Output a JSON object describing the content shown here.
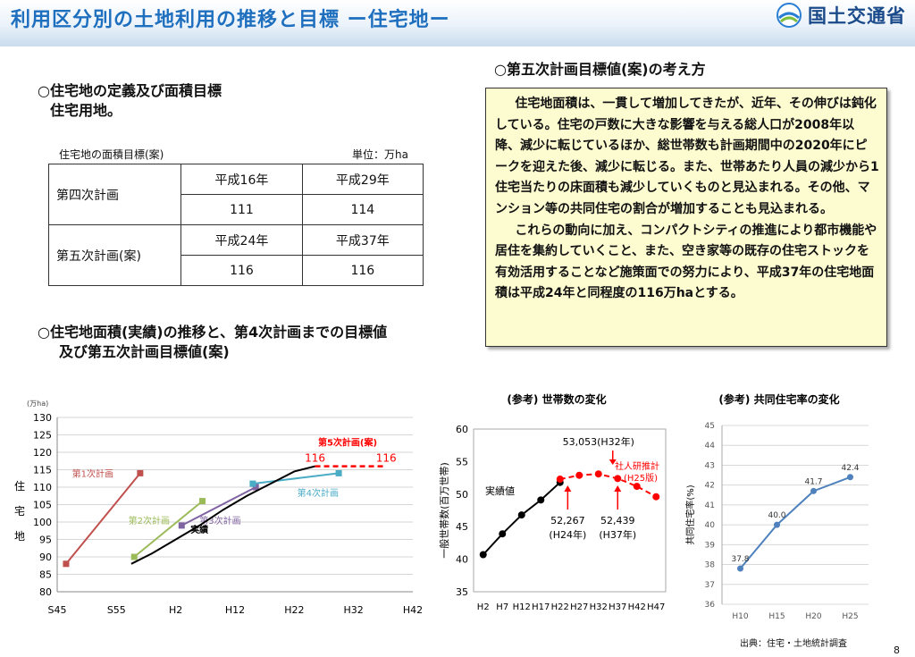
{
  "header": {
    "title": "利用区分別の土地利用の推移と目標 ー住宅地ー",
    "logo_text": "国土交通省"
  },
  "definition": {
    "heading": "○住宅地の定義及び面積目標",
    "text": "住宅用地。"
  },
  "table": {
    "caption": "住宅地の面積目標(案)",
    "unit": "単位：万ha",
    "rows": [
      {
        "plan": "第四次計画",
        "years": [
          "平成16年",
          "平成29年"
        ],
        "values": [
          "111",
          "114"
        ]
      },
      {
        "plan": "第五次計画(案)",
        "years": [
          "平成24年",
          "平成37年"
        ],
        "values": [
          "116",
          "116"
        ]
      }
    ]
  },
  "trend": {
    "heading_line1": "○住宅地面積(実績)の推移と、第4次計画までの目標値",
    "heading_line2": "及び第五次計画目標値(案)"
  },
  "concept": {
    "heading": "○第五次計画目標値(案)の考え方",
    "paragraph1": "住宅地面積は、一貫して増加してきたが、近年、その伸びは鈍化している。住宅の戸数に大きな影響を与える総人口が2008年以降、減少に転じているほか、総世帯数も計画期間中の2020年にピークを迎えた後、減少に転じる。また、世帯あたり人員の減少から1住宅当たりの床面積も減少していくものと見込まれる。その他、マンション等の共同住宅の割合が増加することも見込まれる。",
    "paragraph2": "これらの動向に加え、コンパクトシティの推進により都市機能や居住を集約していくこと、また、空き家等の既存の住宅ストックを有効活用することなど施策面での努力により、平成37年の住宅地面積は平成24年と同程度の116万haとする。"
  },
  "source": "出典：住宅・土地統計調査",
  "page_number": "8",
  "colors": {
    "title": "#1f6fbf",
    "plan1": "#c0504d",
    "plan2": "#9bbb59",
    "plan3": "#8064a2",
    "plan4": "#4bacc6",
    "plan5": "#ff0000",
    "actual": "#000000",
    "rate": "#4f81bd",
    "note_bg": "#fdfbd0"
  },
  "chart_data": [
    {
      "type": "line",
      "unit_label": "(万ha)",
      "ylabel": "住宅地",
      "ylim": [
        80,
        130
      ],
      "yticks": [
        80,
        85,
        90,
        95,
        100,
        105,
        110,
        115,
        120,
        125,
        130
      ],
      "xlim": [
        0,
        6
      ],
      "xticks": [
        "S45",
        "S55",
        "H2",
        "H12",
        "H22",
        "H32",
        "H42"
      ],
      "series": [
        {
          "name": "第1次計画",
          "color": "#c0504d",
          "x": [
            0.15,
            1.4
          ],
          "y": [
            88,
            114
          ],
          "markers": true,
          "label_pos": [
            0.6,
            114
          ]
        },
        {
          "name": "第2次計画",
          "color": "#9bbb59",
          "x": [
            1.3,
            2.45
          ],
          "y": [
            90,
            106
          ],
          "markers": true,
          "label_pos": [
            1.55,
            100.5
          ]
        },
        {
          "name": "第3次計画",
          "color": "#8064a2",
          "x": [
            2.1,
            3.35
          ],
          "y": [
            99,
            110
          ],
          "markers": true,
          "label_pos": [
            2.75,
            100.5
          ]
        },
        {
          "name": "第4次計画",
          "color": "#4bacc6",
          "x": [
            3.3,
            4.75
          ],
          "y": [
            111,
            114
          ],
          "markers": true,
          "label_pos": [
            4.4,
            108.5
          ]
        },
        {
          "name": "実績",
          "color": "#000000",
          "x": [
            1.25,
            1.6,
            2.0,
            2.4,
            2.8,
            3.2,
            3.6,
            4.0,
            4.35
          ],
          "y": [
            88,
            91,
            95,
            99,
            103.5,
            107.5,
            111,
            114.5,
            116
          ],
          "markers": false,
          "label_pos": [
            2.4,
            98
          ]
        },
        {
          "name": "第5次計画(案)",
          "color": "#ff0000",
          "x": [
            4.35,
            5.55
          ],
          "y": [
            116,
            116
          ],
          "markers": false,
          "dashed": true,
          "label_pos": [
            4.9,
            123
          ],
          "value_labels": [
            "116",
            "116"
          ]
        }
      ]
    },
    {
      "type": "line",
      "title": "(参考) 世帯数の変化",
      "ylabel": "一般世帯数(百万世帯)",
      "ylim": [
        35,
        60
      ],
      "yticks": [
        35,
        40,
        45,
        50,
        55,
        60
      ],
      "categories": [
        "H2",
        "H7",
        "H12",
        "H17",
        "H22",
        "H27",
        "H32",
        "H37",
        "H42",
        "H47"
      ],
      "series": [
        {
          "name": "実績値",
          "color": "#000000",
          "x": [
            0,
            1,
            2,
            3,
            4
          ],
          "values": [
            40.7,
            43.9,
            46.8,
            49.1,
            51.8
          ]
        },
        {
          "name": "社人研推計(H25版)",
          "color": "#ff0000",
          "x": [
            4,
            5,
            6,
            7,
            8,
            9
          ],
          "values": [
            52.3,
            52.9,
            53.1,
            52.4,
            51.2,
            49.6
          ],
          "dashed": true
        }
      ],
      "annotations": [
        {
          "text": "53,053(H32年)",
          "x": 6
        },
        {
          "text": "52,267",
          "sub": "(H24年)",
          "x": 4.4
        },
        {
          "text": "52,439",
          "sub": "(H37年)",
          "x": 7
        }
      ]
    },
    {
      "type": "line",
      "title": "(参考) 共同住宅率の変化",
      "ylabel": "共同住宅率(%)",
      "ylim": [
        36,
        45
      ],
      "yticks": [
        36,
        37,
        38,
        39,
        40,
        41,
        42,
        43,
        44,
        45
      ],
      "categories": [
        "H10",
        "H15",
        "H20",
        "H25"
      ],
      "series": [
        {
          "name": "共同住宅率",
          "color": "#4f81bd",
          "values": [
            37.8,
            40.0,
            41.7,
            42.4
          ]
        }
      ],
      "value_labels": [
        "37.8",
        "40.0",
        "41.7",
        "42.4"
      ]
    }
  ]
}
